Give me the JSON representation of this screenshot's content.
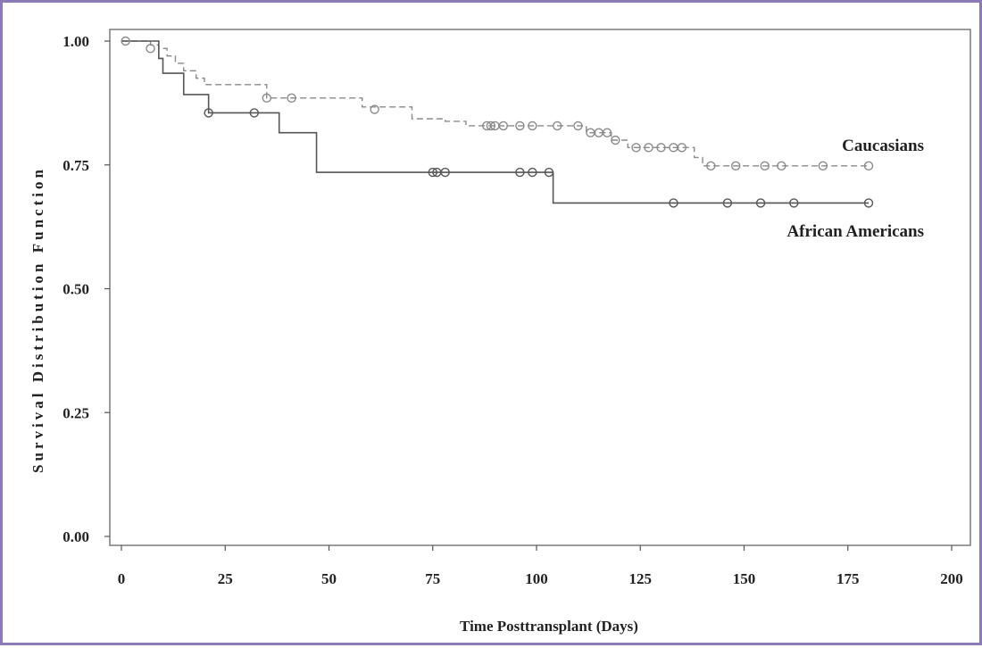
{
  "chart_data": {
    "type": "line",
    "xlabel": "Time Posttransplant (Days)",
    "ylabel": "Survival Distribution Function",
    "xlim": [
      0,
      200
    ],
    "ylim": [
      0,
      1
    ],
    "x_ticks": [
      {
        "value": 0,
        "label": "0"
      },
      {
        "value": 25,
        "label": "25"
      },
      {
        "value": 50,
        "label": "50"
      },
      {
        "value": 75,
        "label": "75"
      },
      {
        "value": 100,
        "label": "100"
      },
      {
        "value": 125,
        "label": "125"
      },
      {
        "value": 150,
        "label": "150"
      },
      {
        "value": 175,
        "label": "175"
      },
      {
        "value": 200,
        "label": "200"
      }
    ],
    "y_ticks": [
      {
        "value": 0,
        "label": "0.00"
      },
      {
        "value": 0.25,
        "label": "0.25"
      },
      {
        "value": 0.5,
        "label": "0.50"
      },
      {
        "value": 0.75,
        "label": "0.75"
      },
      {
        "value": 1,
        "label": "1.00"
      }
    ],
    "grid": false,
    "series": [
      {
        "name": "Caucasians",
        "style": "dashed",
        "color": "#8a8a8a",
        "steps": [
          [
            0,
            1.0
          ],
          [
            7,
            0.992
          ],
          [
            9,
            0.985
          ],
          [
            11,
            0.97
          ],
          [
            13,
            0.955
          ],
          [
            15,
            0.94
          ],
          [
            18,
            0.925
          ],
          [
            20,
            0.912
          ],
          [
            35,
            0.885
          ],
          [
            58,
            0.867
          ],
          [
            70,
            0.843
          ],
          [
            78,
            0.838
          ],
          [
            83,
            0.829
          ],
          [
            112,
            0.815
          ],
          [
            118,
            0.8
          ],
          [
            122,
            0.785
          ],
          [
            138,
            0.765
          ],
          [
            140,
            0.748
          ],
          [
            180,
            0.748
          ]
        ],
        "censored": [
          [
            1,
            1.0
          ],
          [
            7,
            0.985
          ],
          [
            35,
            0.885
          ],
          [
            41,
            0.885
          ],
          [
            61,
            0.862
          ],
          [
            88,
            0.829
          ],
          [
            89,
            0.829
          ],
          [
            90,
            0.829
          ],
          [
            92,
            0.829
          ],
          [
            96,
            0.829
          ],
          [
            99,
            0.829
          ],
          [
            105,
            0.829
          ],
          [
            110,
            0.829
          ],
          [
            113,
            0.815
          ],
          [
            115,
            0.815
          ],
          [
            117,
            0.815
          ],
          [
            119,
            0.8
          ],
          [
            124,
            0.785
          ],
          [
            127,
            0.785
          ],
          [
            130,
            0.785
          ],
          [
            133,
            0.785
          ],
          [
            135,
            0.785
          ],
          [
            142,
            0.748
          ],
          [
            148,
            0.748
          ],
          [
            155,
            0.748
          ],
          [
            159,
            0.748
          ],
          [
            169,
            0.748
          ],
          [
            180,
            0.748
          ]
        ]
      },
      {
        "name": "African Americans",
        "style": "solid",
        "color": "#555555",
        "steps": [
          [
            0,
            1.0
          ],
          [
            9,
            0.965
          ],
          [
            10,
            0.935
          ],
          [
            15,
            0.892
          ],
          [
            21,
            0.855
          ],
          [
            38,
            0.815
          ],
          [
            47,
            0.735
          ],
          [
            104,
            0.673
          ],
          [
            180,
            0.673
          ]
        ],
        "censored": [
          [
            21,
            0.855
          ],
          [
            32,
            0.855
          ],
          [
            75,
            0.735
          ],
          [
            76,
            0.735
          ],
          [
            78,
            0.735
          ],
          [
            96,
            0.735
          ],
          [
            99,
            0.735
          ],
          [
            103,
            0.735
          ],
          [
            133,
            0.673
          ],
          [
            146,
            0.673
          ],
          [
            154,
            0.673
          ],
          [
            162,
            0.673
          ],
          [
            180,
            0.673
          ]
        ]
      }
    ]
  }
}
